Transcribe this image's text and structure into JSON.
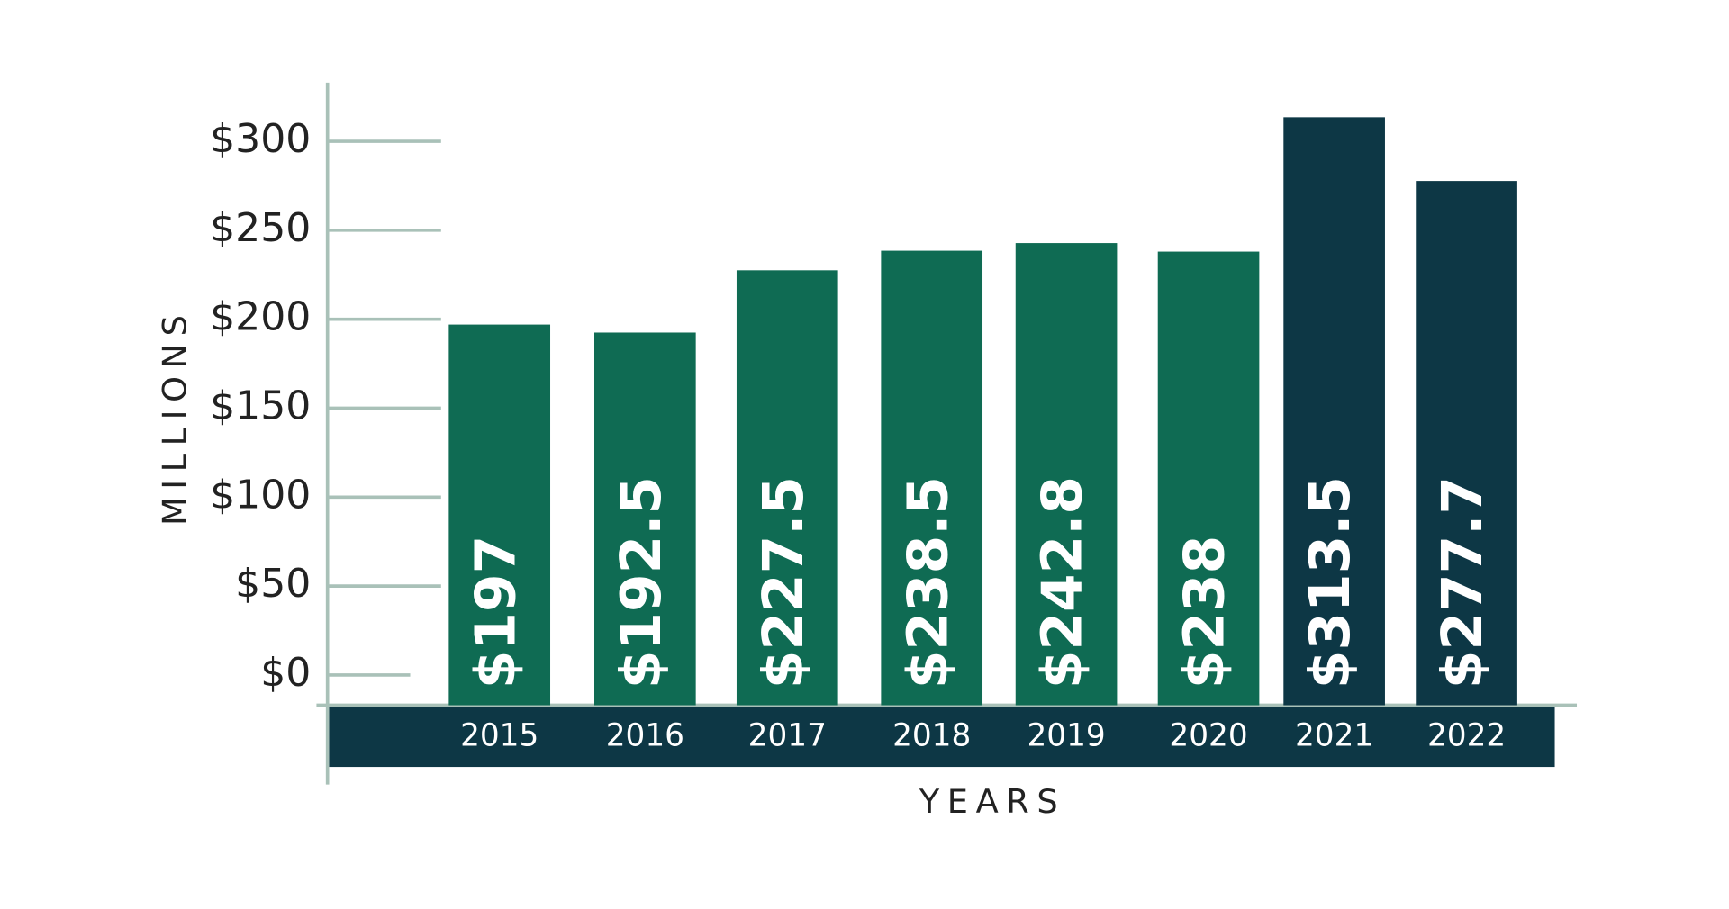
{
  "chart_data": {
    "type": "bar",
    "categories": [
      "2015",
      "2016",
      "2017",
      "2018",
      "2019",
      "2020",
      "2021",
      "2022"
    ],
    "values": [
      197,
      192.5,
      227.5,
      238.5,
      242.8,
      238,
      313.5,
      277.7
    ],
    "value_labels": [
      "$197",
      "$192.5",
      "$227.5",
      "$238.5",
      "$242.8",
      "$238",
      "$313.5",
      "$277.7"
    ],
    "colors": [
      "#0f6b53",
      "#0f6b53",
      "#0f6b53",
      "#0f6b53",
      "#0f6b53",
      "#0f6b53",
      "#0d3745",
      "#0d3745"
    ],
    "ylabel": "MILLIONS",
    "xlabel": "YEARS",
    "ylim": [
      -17,
      333
    ],
    "yticks": [
      {
        "value": 0,
        "label": "$0"
      },
      {
        "value": 50,
        "label": "$50"
      },
      {
        "value": 100,
        "label": "$100"
      },
      {
        "value": 150,
        "label": "$150"
      },
      {
        "value": 200,
        "label": "$200"
      },
      {
        "value": 250,
        "label": "$250"
      },
      {
        "value": 300,
        "label": "$300"
      }
    ],
    "grid": true
  }
}
